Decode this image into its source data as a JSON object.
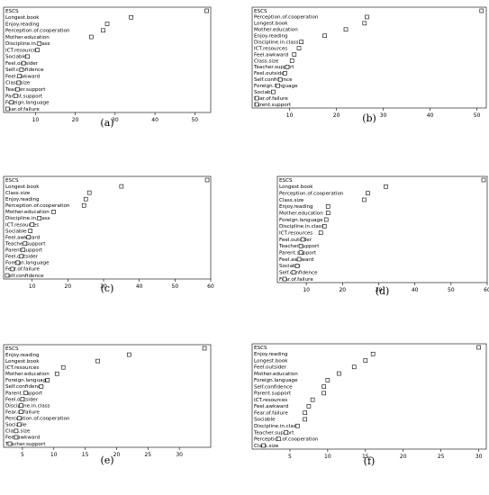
{
  "chart_data": [
    {
      "type": "scatter",
      "panel": "(a)",
      "caption": "(a)",
      "xlim": [
        2,
        54
      ],
      "xticks": [
        "10",
        "20",
        "30",
        "40",
        "50"
      ],
      "labels": [
        "ESCS",
        "Longest.book",
        "Enjoy.reading",
        "Perception.of.cooperation",
        "Mother.education",
        "Discipline.in.class",
        "ICT.resources",
        "Sociable",
        "Feel.outsider",
        "Self.confidence",
        "Feel.awkward",
        "Class.size",
        "Teacher.support",
        "Parent.support",
        "Foreign.language",
        "Fear.of.failure"
      ],
      "values": [
        53,
        34,
        28,
        27,
        24,
        11,
        10.5,
        8,
        7,
        6.5,
        6,
        5.8,
        5.5,
        5,
        4,
        3
      ]
    },
    {
      "type": "scatter",
      "panel": "(b)",
      "caption": "(b)",
      "xlim": [
        2,
        52
      ],
      "xticks": [
        "10",
        "20",
        "30",
        "40",
        "50"
      ],
      "labels": [
        "ESCS",
        "Perception.of.cooperation",
        "Longest.book",
        "Mother.education",
        "Enjoy.reading",
        "Discipline.in.class",
        "ICT.resources",
        "Feel.awkward",
        "Class.size",
        "Teacher.support",
        "Feel.outsider",
        "Self.confidence",
        "Foreign.language",
        "Sociable",
        "Fear.of.failure",
        "Parent.support"
      ],
      "values": [
        51,
        26.5,
        26,
        22,
        17.5,
        12.5,
        12,
        11,
        10.5,
        9.5,
        9,
        8,
        7.5,
        6.5,
        3,
        3
      ]
    },
    {
      "type": "scatter",
      "panel": "(c)",
      "caption": "(c)",
      "xlim": [
        2,
        60
      ],
      "xticks": [
        "10",
        "20",
        "30",
        "40",
        "50",
        "60"
      ],
      "labels": [
        "ESCS",
        "Longest.book",
        "Class.size",
        "Enjoy.reading",
        "Perception.of.cooperation",
        "Mother.education",
        "Discipline.in.class",
        "ICT.resources",
        "Sociable",
        "Feel.awkward",
        "Teacher.support",
        "Parent.support",
        "Feel.outsider",
        "Foreign.language",
        "Fear.of.failure",
        "Self.confidence"
      ],
      "values": [
        59,
        35,
        26,
        25,
        24.5,
        16,
        12,
        10,
        9.5,
        9,
        8,
        7.5,
        7,
        6,
        4.5,
        3
      ]
    },
    {
      "type": "scatter",
      "panel": "(d)",
      "caption": "(d)",
      "xlim": [
        2,
        60
      ],
      "xticks": [
        "10",
        "20",
        "30",
        "40",
        "50",
        "60"
      ],
      "labels": [
        "ESCS",
        "Longest.book",
        "Perception.of.cooperation",
        "Class.size",
        "Enjoy.reading",
        "Mother.education",
        "Foreign.language",
        "Discipline.in.class",
        "ICT.resources",
        "Feel.outsider",
        "Teacher.support",
        "Parent.support",
        "Feel.awkward",
        "Sociable",
        "Self.confidence",
        "Fear.of.failure"
      ],
      "values": [
        59,
        32,
        27,
        26,
        16,
        16,
        15.5,
        15,
        14,
        9,
        8.5,
        8.5,
        8,
        7.5,
        6.5,
        4
      ]
    },
    {
      "type": "scatter",
      "panel": "(e)",
      "caption": "(e)",
      "xlim": [
        2,
        35
      ],
      "xticks": [
        "5",
        "10",
        "15",
        "20",
        "25",
        "30"
      ],
      "labels": [
        "ESCS",
        "Enjoy.reading",
        "Longest.book",
        "ICT.resources",
        "Mother.education",
        "Foreign.language",
        "Self.confidence",
        "Parent.support",
        "Feel.outsider",
        "Discipline.in.class",
        "Fear.of.failure",
        "Perception.of.cooperation",
        "Sociable",
        "Class.size",
        "Feel.awkward",
        "Teacher.support"
      ],
      "values": [
        34,
        22,
        17,
        11.5,
        10.5,
        9,
        8,
        5.5,
        5,
        4.8,
        4.8,
        4.5,
        4.5,
        4,
        4,
        3
      ]
    },
    {
      "type": "scatter",
      "panel": "(f)",
      "caption": "(f)",
      "xlim": [
        0,
        31
      ],
      "xticks": [
        "5",
        "10",
        "15",
        "20",
        "25",
        "30"
      ],
      "labels": [
        "ESCS",
        "Enjoy.reading",
        "Longest.book",
        "Feel.outsider",
        "Mother.education",
        "Foreign.language",
        "Self.confidence",
        "Parent.support",
        "ICT.resources",
        "Feel.awkward",
        "Fear.of.failure",
        "Sociable",
        "Discipline.in.class",
        "Teacher.support",
        "Perception.of.cooperation",
        "Class.size"
      ],
      "values": [
        30,
        16,
        15,
        13.5,
        11.5,
        10,
        9.5,
        9.5,
        8,
        7.5,
        7,
        7,
        6,
        4.5,
        3.5,
        1.5
      ]
    }
  ]
}
